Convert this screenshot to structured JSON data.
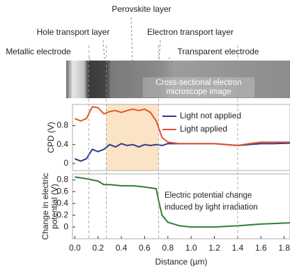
{
  "figure": {
    "layers": [
      "Perovskite layer",
      "Hole transport layer",
      "Electron transport layer",
      "Metallic electrode",
      "Transparent electrode"
    ],
    "image_caption": [
      "Cross-sectional electron",
      "microscope image"
    ]
  },
  "chart_data": [
    {
      "type": "line",
      "ylabel": "CPD (V)",
      "x": [
        0,
        0.05,
        0.1,
        0.15,
        0.2,
        0.25,
        0.3,
        0.35,
        0.4,
        0.45,
        0.5,
        0.55,
        0.6,
        0.65,
        0.7,
        0.75,
        0.8,
        0.9,
        1.0,
        1.2,
        1.4,
        1.5,
        1.6,
        1.7,
        1.85
      ],
      "series": [
        {
          "name": "Light not applied",
          "color": "#2e3a8c",
          "values": [
            0.1,
            0.05,
            0.1,
            0.3,
            0.25,
            0.3,
            0.4,
            0.35,
            0.42,
            0.38,
            0.4,
            0.35,
            0.4,
            0.38,
            0.4,
            0.38,
            0.42,
            0.42,
            0.42,
            0.42,
            0.38,
            0.4,
            0.42,
            0.42,
            0.43
          ]
        },
        {
          "name": "Light applied",
          "color": "#e0532d",
          "values": [
            0.95,
            0.9,
            0.95,
            1.2,
            1.18,
            1.05,
            1.1,
            1.12,
            1.08,
            1.12,
            1.15,
            1.12,
            1.15,
            1.08,
            0.9,
            0.55,
            0.45,
            0.42,
            0.42,
            0.42,
            0.38,
            0.42,
            0.45,
            0.45,
            0.45
          ]
        }
      ],
      "xlim": [
        -0.02,
        1.85
      ],
      "ylim": [
        -0.15,
        1.25
      ],
      "yticks": [
        0,
        0.4,
        0.8
      ],
      "boundaries": [
        0.12,
        0.27,
        0.72,
        1.4
      ],
      "shade": [
        0.27,
        0.72
      ],
      "shade_color": "#fbe3c6"
    },
    {
      "type": "line",
      "ylabel": [
        "Change in electric",
        "potential (V)"
      ],
      "xlabel": "Distance (µm)",
      "annotation": [
        "Electric potential change",
        "induced by light irradiation"
      ],
      "x": [
        0,
        0.1,
        0.2,
        0.25,
        0.3,
        0.4,
        0.5,
        0.6,
        0.7,
        0.72,
        0.75,
        0.8,
        0.9,
        1.0,
        1.2,
        1.4,
        1.6,
        1.85
      ],
      "series": [
        {
          "color": "#2f7d32",
          "values": [
            0.85,
            0.82,
            0.78,
            0.72,
            0.72,
            0.7,
            0.7,
            0.68,
            0.65,
            0.45,
            0.2,
            0.08,
            0.02,
            0.0,
            0.0,
            0.02,
            0.05,
            0.07
          ]
        }
      ],
      "xlim": [
        -0.02,
        1.85
      ],
      "ylim": [
        -0.2,
        0.9
      ],
      "yticks": [
        0,
        0.2,
        0.4,
        0.6,
        0.8
      ],
      "xticks": [
        {
          "value": 0,
          "label": "0.0"
        },
        0.2,
        0.4,
        0.6,
        0.8,
        {
          "value": 1,
          "label": "1.0"
        },
        1.2,
        1.4,
        1.6,
        1.8
      ]
    }
  ]
}
